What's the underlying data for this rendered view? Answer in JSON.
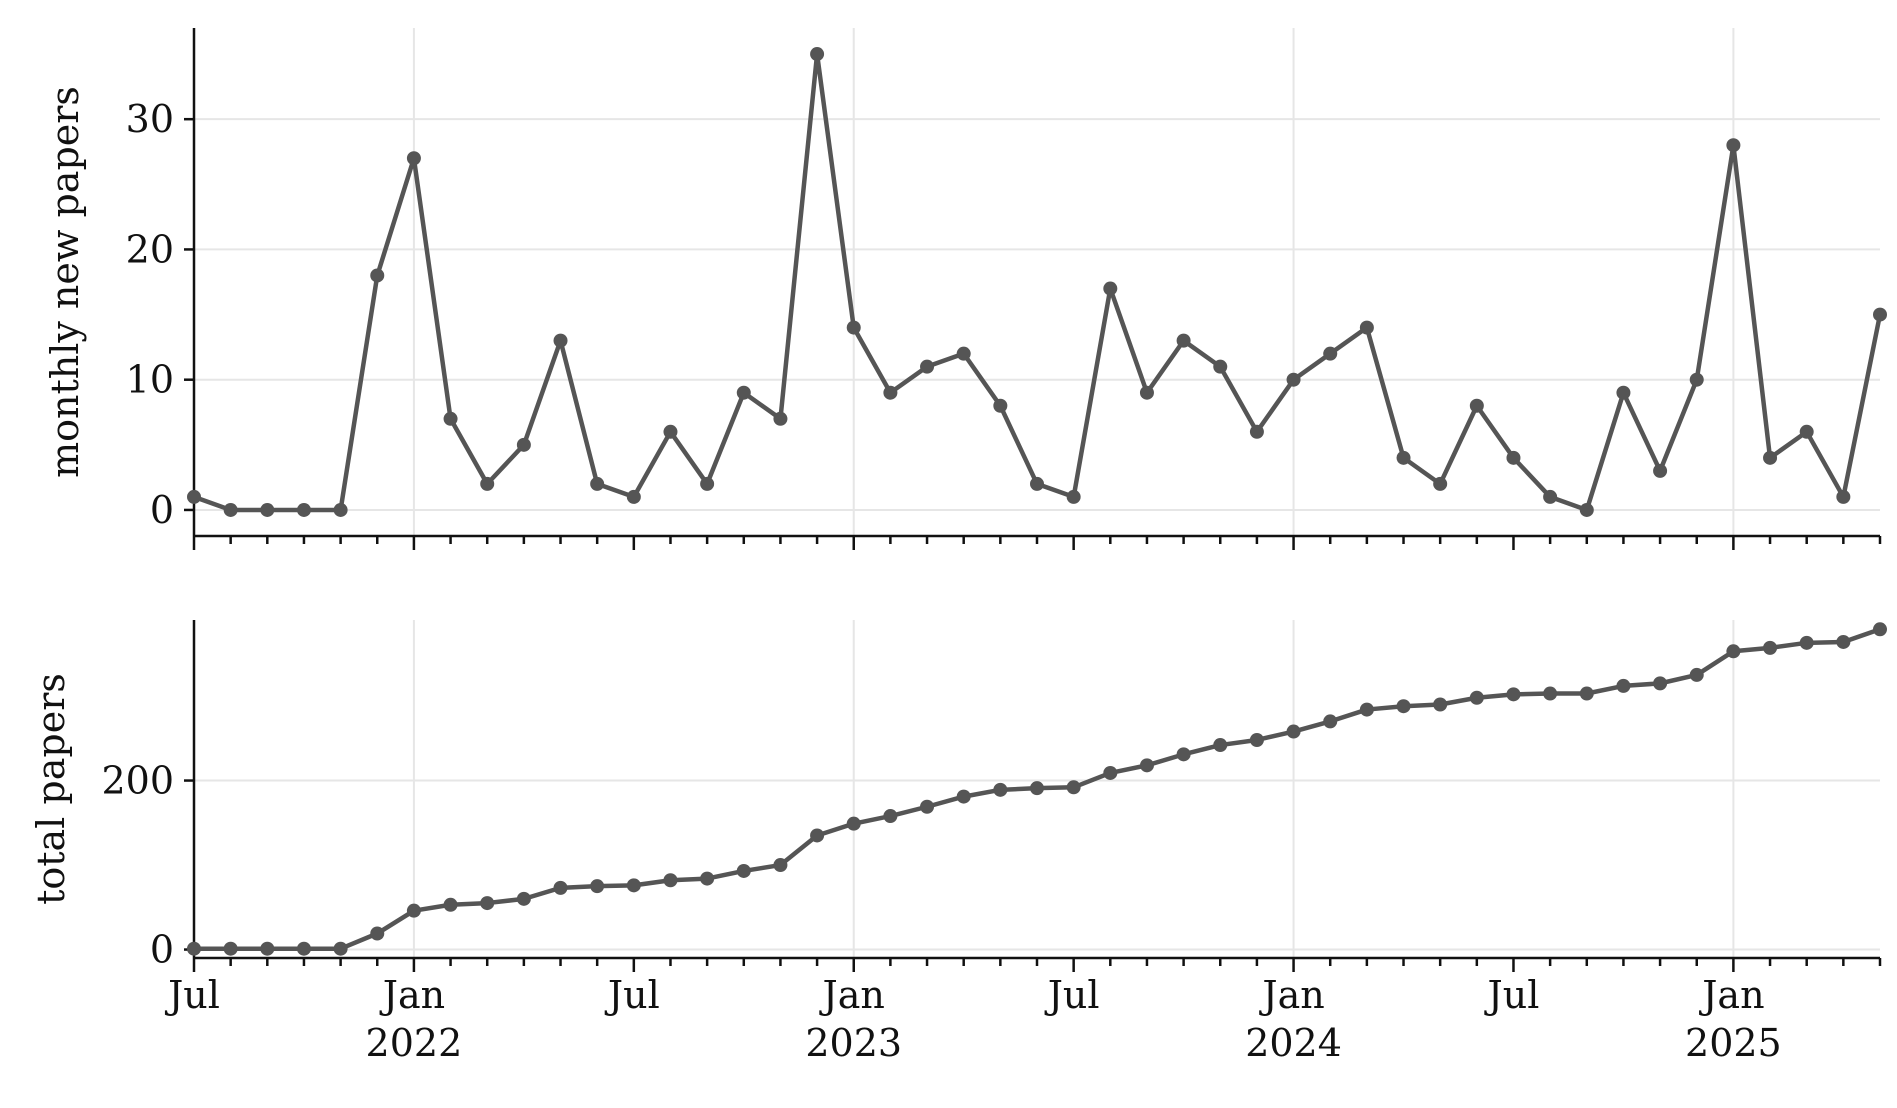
{
  "chart_data": [
    {
      "type": "line",
      "ylabel": "monthly new papers",
      "ylim": [
        -2,
        37
      ],
      "yticks": [
        0,
        10,
        20,
        30
      ],
      "grid": true,
      "color": "#555555",
      "x": [
        "2021-07",
        "2021-08",
        "2021-09",
        "2021-10",
        "2021-11",
        "2021-12",
        "2022-01",
        "2022-02",
        "2022-03",
        "2022-04",
        "2022-05",
        "2022-06",
        "2022-07",
        "2022-08",
        "2022-09",
        "2022-10",
        "2022-11",
        "2022-12",
        "2023-01",
        "2023-02",
        "2023-03",
        "2023-04",
        "2023-05",
        "2023-06",
        "2023-07",
        "2023-08",
        "2023-09",
        "2023-10",
        "2023-11",
        "2023-12",
        "2024-01",
        "2024-02",
        "2024-03",
        "2024-04",
        "2024-05",
        "2024-06",
        "2024-07",
        "2024-08",
        "2024-09",
        "2024-10",
        "2024-11",
        "2024-12",
        "2025-01",
        "2025-02",
        "2025-03",
        "2025-04",
        "2025-05"
      ],
      "y": [
        1,
        0,
        0,
        0,
        0,
        18,
        27,
        7,
        2,
        5,
        13,
        2,
        1,
        6,
        2,
        9,
        7,
        35,
        14,
        9,
        11,
        12,
        8,
        2,
        1,
        17,
        9,
        13,
        11,
        6,
        10,
        12,
        14,
        4,
        2,
        8,
        4,
        1,
        0,
        9,
        3,
        10,
        28,
        4,
        6,
        1,
        15
      ]
    },
    {
      "type": "line",
      "ylabel": "total papers",
      "ylim": [
        -10,
        390
      ],
      "yticks": [
        0,
        200
      ],
      "grid": true,
      "color": "#555555",
      "x": [
        "2021-07",
        "2021-08",
        "2021-09",
        "2021-10",
        "2021-11",
        "2021-12",
        "2022-01",
        "2022-02",
        "2022-03",
        "2022-04",
        "2022-05",
        "2022-06",
        "2022-07",
        "2022-08",
        "2022-09",
        "2022-10",
        "2022-11",
        "2022-12",
        "2023-01",
        "2023-02",
        "2023-03",
        "2023-04",
        "2023-05",
        "2023-06",
        "2023-07",
        "2023-08",
        "2023-09",
        "2023-10",
        "2023-11",
        "2023-12",
        "2024-01",
        "2024-02",
        "2024-03",
        "2024-04",
        "2024-05",
        "2024-06",
        "2024-07",
        "2024-08",
        "2024-09",
        "2024-10",
        "2024-11",
        "2024-12",
        "2025-01",
        "2025-02",
        "2025-03",
        "2025-04",
        "2025-05"
      ],
      "y": [
        1,
        1,
        1,
        1,
        1,
        19,
        46,
        53,
        55,
        60,
        73,
        75,
        76,
        82,
        84,
        93,
        100,
        135,
        149,
        158,
        169,
        181,
        189,
        191,
        192,
        209,
        218,
        231,
        242,
        248,
        258,
        270,
        284,
        288,
        290,
        298,
        302,
        303,
        303,
        312,
        315,
        325,
        353,
        357,
        363,
        364,
        379
      ]
    }
  ],
  "x_axis": {
    "ticks": [
      {
        "x": "2021-07",
        "label": "Jul",
        "year": ""
      },
      {
        "x": "2022-01",
        "label": "Jan",
        "year": "2022"
      },
      {
        "x": "2022-07",
        "label": "Jul",
        "year": ""
      },
      {
        "x": "2023-01",
        "label": "Jan",
        "year": "2023"
      },
      {
        "x": "2023-07",
        "label": "Jul",
        "year": ""
      },
      {
        "x": "2024-01",
        "label": "Jan",
        "year": "2024"
      },
      {
        "x": "2024-07",
        "label": "Jul",
        "year": ""
      },
      {
        "x": "2025-01",
        "label": "Jan",
        "year": "2025"
      }
    ]
  }
}
